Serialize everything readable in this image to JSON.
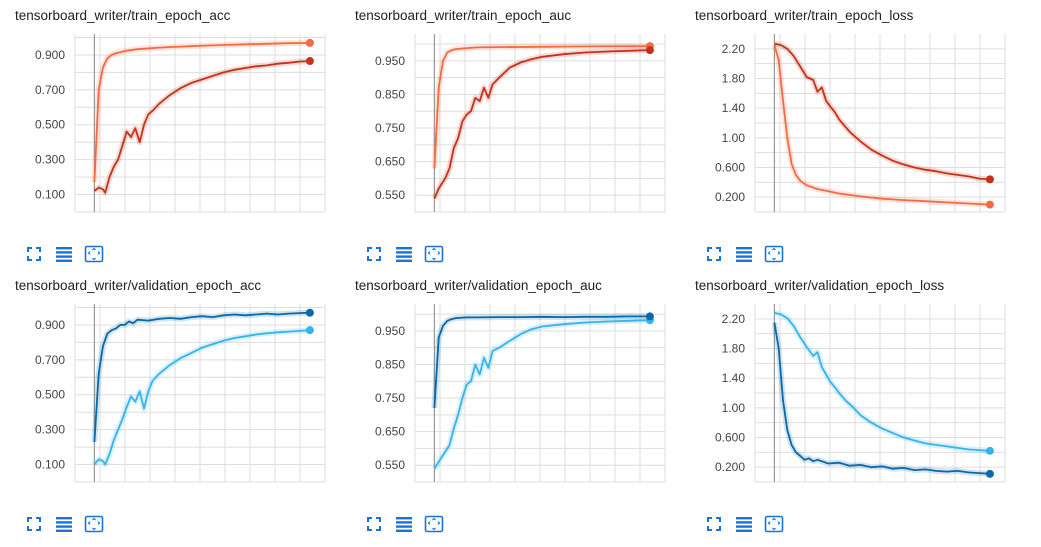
{
  "colors": {
    "train_light": "#f26b43",
    "train_dark": "#c5321a",
    "val_light": "#33b4ea",
    "val_dark": "#0868a9",
    "grid": "#dddddd",
    "axis": "#999999",
    "tool_icon": "#1a73d9"
  },
  "toolbar": {
    "expand_icon": "expand-icon",
    "log_scale_icon": "toggle-log-scale-icon",
    "fit_domain_icon": "fit-domain-icon"
  },
  "chart_data": [
    {
      "type": "line",
      "title": "tensorboard_writer/train_epoch_acc",
      "ytick_labels": [
        "0.900",
        "0.700",
        "0.500",
        "0.300",
        "0.100"
      ],
      "yticks": [
        0.9,
        0.7,
        0.5,
        0.3,
        0.1
      ],
      "ylim": [
        0.0,
        1.02
      ],
      "xlim": [
        -0.09,
        1.07
      ],
      "grid": true,
      "series": [
        {
          "color": "#f26b43",
          "x": [
            0,
            0.02,
            0.04,
            0.06,
            0.08,
            0.1,
            0.15,
            0.2,
            0.3,
            0.4,
            0.5,
            0.6,
            0.7,
            0.8,
            0.9,
            1.0
          ],
          "y": [
            0.17,
            0.7,
            0.83,
            0.88,
            0.9,
            0.91,
            0.925,
            0.933,
            0.942,
            0.948,
            0.953,
            0.957,
            0.961,
            0.964,
            0.967,
            0.969
          ]
        },
        {
          "color": "#c5321a",
          "x": [
            0,
            0.02,
            0.04,
            0.05,
            0.07,
            0.09,
            0.11,
            0.13,
            0.15,
            0.17,
            0.19,
            0.21,
            0.23,
            0.25,
            0.27,
            0.3,
            0.35,
            0.4,
            0.45,
            0.5,
            0.55,
            0.6,
            0.65,
            0.7,
            0.75,
            0.8,
            0.85,
            0.9,
            0.95,
            1.0
          ],
          "y": [
            0.12,
            0.14,
            0.13,
            0.11,
            0.2,
            0.26,
            0.3,
            0.38,
            0.46,
            0.43,
            0.48,
            0.4,
            0.5,
            0.56,
            0.58,
            0.62,
            0.67,
            0.71,
            0.74,
            0.76,
            0.78,
            0.8,
            0.815,
            0.825,
            0.835,
            0.84,
            0.85,
            0.855,
            0.862,
            0.865
          ]
        }
      ]
    },
    {
      "type": "line",
      "title": "tensorboard_writer/train_epoch_auc",
      "ytick_labels": [
        "0.950",
        "0.850",
        "0.750",
        "0.650",
        "0.550"
      ],
      "yticks": [
        0.95,
        0.85,
        0.75,
        0.65,
        0.55
      ],
      "ylim": [
        0.5,
        1.03
      ],
      "xlim": [
        -0.09,
        1.07
      ],
      "grid": true,
      "series": [
        {
          "color": "#f26b43",
          "x": [
            0,
            0.02,
            0.04,
            0.06,
            0.08,
            0.1,
            0.15,
            0.2,
            0.3,
            0.5,
            0.7,
            1.0
          ],
          "y": [
            0.63,
            0.87,
            0.95,
            0.975,
            0.982,
            0.985,
            0.988,
            0.99,
            0.991,
            0.992,
            0.993,
            0.994
          ]
        },
        {
          "color": "#c5321a",
          "x": [
            0,
            0.02,
            0.05,
            0.07,
            0.09,
            0.11,
            0.13,
            0.15,
            0.17,
            0.19,
            0.21,
            0.23,
            0.25,
            0.27,
            0.3,
            0.35,
            0.4,
            0.45,
            0.5,
            0.6,
            0.7,
            0.8,
            0.9,
            1.0
          ],
          "y": [
            0.54,
            0.57,
            0.6,
            0.63,
            0.69,
            0.72,
            0.77,
            0.79,
            0.8,
            0.84,
            0.83,
            0.87,
            0.84,
            0.88,
            0.9,
            0.93,
            0.945,
            0.955,
            0.962,
            0.97,
            0.975,
            0.978,
            0.98,
            0.982
          ]
        }
      ]
    },
    {
      "type": "line",
      "title": "tensorboard_writer/train_epoch_loss",
      "ytick_labels": [
        "2.20",
        "1.80",
        "1.40",
        "1.00",
        "0.600",
        "0.200"
      ],
      "yticks": [
        2.2,
        1.8,
        1.4,
        1.0,
        0.6,
        0.2
      ],
      "ylim": [
        0.0,
        2.4
      ],
      "xlim": [
        -0.09,
        1.07
      ],
      "grid": true,
      "series": [
        {
          "color": "#f26b43",
          "x": [
            0,
            0.02,
            0.04,
            0.06,
            0.08,
            0.1,
            0.12,
            0.15,
            0.2,
            0.25,
            0.3,
            0.4,
            0.5,
            0.6,
            0.7,
            0.8,
            0.9,
            1.0
          ],
          "y": [
            2.25,
            2.05,
            1.5,
            1.0,
            0.65,
            0.5,
            0.42,
            0.36,
            0.31,
            0.28,
            0.25,
            0.21,
            0.18,
            0.16,
            0.145,
            0.13,
            0.115,
            0.1
          ]
        },
        {
          "color": "#c5321a",
          "x": [
            0,
            0.03,
            0.06,
            0.09,
            0.12,
            0.15,
            0.18,
            0.2,
            0.22,
            0.24,
            0.26,
            0.28,
            0.3,
            0.32,
            0.35,
            0.4,
            0.45,
            0.5,
            0.55,
            0.6,
            0.65,
            0.7,
            0.75,
            0.8,
            0.85,
            0.9,
            0.95,
            1.0
          ],
          "y": [
            2.27,
            2.25,
            2.2,
            2.1,
            1.96,
            1.82,
            1.78,
            1.62,
            1.68,
            1.5,
            1.42,
            1.35,
            1.25,
            1.18,
            1.08,
            0.95,
            0.84,
            0.76,
            0.69,
            0.64,
            0.6,
            0.57,
            0.55,
            0.52,
            0.5,
            0.48,
            0.45,
            0.44
          ]
        }
      ]
    },
    {
      "type": "line",
      "title": "tensorboard_writer/validation_epoch_acc",
      "ytick_labels": [
        "0.900",
        "0.700",
        "0.500",
        "0.300",
        "0.100"
      ],
      "yticks": [
        0.9,
        0.7,
        0.5,
        0.3,
        0.1
      ],
      "ylim": [
        0.0,
        1.02
      ],
      "xlim": [
        -0.09,
        1.07
      ],
      "grid": true,
      "series": [
        {
          "color": "#33b4ea",
          "x": [
            0,
            0.02,
            0.04,
            0.05,
            0.07,
            0.09,
            0.11,
            0.13,
            0.15,
            0.17,
            0.19,
            0.21,
            0.23,
            0.25,
            0.27,
            0.3,
            0.35,
            0.4,
            0.45,
            0.5,
            0.55,
            0.6,
            0.65,
            0.7,
            0.75,
            0.8,
            0.85,
            0.9,
            0.95,
            1.0
          ],
          "y": [
            0.1,
            0.13,
            0.12,
            0.1,
            0.16,
            0.24,
            0.3,
            0.36,
            0.43,
            0.49,
            0.46,
            0.52,
            0.42,
            0.52,
            0.58,
            0.62,
            0.67,
            0.71,
            0.74,
            0.77,
            0.79,
            0.81,
            0.825,
            0.835,
            0.845,
            0.852,
            0.858,
            0.862,
            0.866,
            0.87
          ]
        },
        {
          "color": "#0868a9",
          "x": [
            0,
            0.02,
            0.04,
            0.06,
            0.08,
            0.1,
            0.12,
            0.14,
            0.16,
            0.18,
            0.2,
            0.25,
            0.3,
            0.35,
            0.4,
            0.45,
            0.5,
            0.55,
            0.6,
            0.65,
            0.7,
            0.75,
            0.8,
            0.85,
            0.9,
            0.95,
            1.0
          ],
          "y": [
            0.23,
            0.62,
            0.78,
            0.85,
            0.87,
            0.88,
            0.9,
            0.9,
            0.92,
            0.91,
            0.93,
            0.925,
            0.935,
            0.94,
            0.935,
            0.945,
            0.95,
            0.945,
            0.955,
            0.96,
            0.955,
            0.96,
            0.965,
            0.96,
            0.965,
            0.968,
            0.97
          ]
        }
      ]
    },
    {
      "type": "line",
      "title": "tensorboard_writer/validation_epoch_auc",
      "ytick_labels": [
        "0.950",
        "0.850",
        "0.750",
        "0.650",
        "0.550"
      ],
      "yticks": [
        0.95,
        0.85,
        0.75,
        0.65,
        0.55
      ],
      "ylim": [
        0.5,
        1.03
      ],
      "xlim": [
        -0.09,
        1.07
      ],
      "grid": true,
      "series": [
        {
          "color": "#33b4ea",
          "x": [
            0,
            0.02,
            0.05,
            0.07,
            0.09,
            0.11,
            0.13,
            0.15,
            0.17,
            0.19,
            0.21,
            0.23,
            0.25,
            0.27,
            0.3,
            0.35,
            0.4,
            0.45,
            0.5,
            0.6,
            0.7,
            0.8,
            0.9,
            1.0
          ],
          "y": [
            0.54,
            0.56,
            0.59,
            0.61,
            0.66,
            0.7,
            0.75,
            0.79,
            0.8,
            0.85,
            0.82,
            0.87,
            0.84,
            0.89,
            0.9,
            0.92,
            0.94,
            0.955,
            0.963,
            0.97,
            0.975,
            0.978,
            0.98,
            0.982
          ]
        },
        {
          "color": "#0868a9",
          "x": [
            0,
            0.02,
            0.04,
            0.06,
            0.08,
            0.1,
            0.15,
            0.2,
            0.3,
            0.4,
            0.5,
            0.6,
            0.7,
            0.8,
            0.9,
            1.0
          ],
          "y": [
            0.72,
            0.93,
            0.965,
            0.98,
            0.985,
            0.988,
            0.99,
            0.99,
            0.991,
            0.991,
            0.992,
            0.991,
            0.992,
            0.992,
            0.993,
            0.993
          ]
        }
      ]
    },
    {
      "type": "line",
      "title": "tensorboard_writer/validation_epoch_loss",
      "ytick_labels": [
        "2.20",
        "1.80",
        "1.40",
        "1.00",
        "0.600",
        "0.200"
      ],
      "yticks": [
        2.2,
        1.8,
        1.4,
        1.0,
        0.6,
        0.2
      ],
      "ylim": [
        0.0,
        2.4
      ],
      "xlim": [
        -0.09,
        1.07
      ],
      "grid": true,
      "series": [
        {
          "color": "#33b4ea",
          "x": [
            0,
            0.03,
            0.06,
            0.09,
            0.12,
            0.15,
            0.18,
            0.2,
            0.22,
            0.24,
            0.26,
            0.28,
            0.3,
            0.33,
            0.36,
            0.4,
            0.45,
            0.5,
            0.55,
            0.6,
            0.65,
            0.7,
            0.75,
            0.8,
            0.85,
            0.9,
            0.95,
            1.0
          ],
          "y": [
            2.28,
            2.26,
            2.21,
            2.1,
            1.95,
            1.82,
            1.7,
            1.75,
            1.55,
            1.45,
            1.35,
            1.28,
            1.2,
            1.1,
            1.02,
            0.9,
            0.8,
            0.72,
            0.66,
            0.6,
            0.56,
            0.52,
            0.5,
            0.48,
            0.46,
            0.44,
            0.43,
            0.42
          ]
        },
        {
          "color": "#0868a9",
          "x": [
            0,
            0.02,
            0.04,
            0.06,
            0.08,
            0.1,
            0.12,
            0.14,
            0.16,
            0.18,
            0.2,
            0.25,
            0.3,
            0.35,
            0.4,
            0.45,
            0.5,
            0.55,
            0.6,
            0.65,
            0.7,
            0.75,
            0.8,
            0.85,
            0.9,
            0.95,
            1.0
          ],
          "y": [
            2.15,
            1.8,
            1.1,
            0.7,
            0.5,
            0.4,
            0.35,
            0.3,
            0.32,
            0.28,
            0.3,
            0.25,
            0.26,
            0.22,
            0.23,
            0.2,
            0.21,
            0.18,
            0.19,
            0.16,
            0.17,
            0.15,
            0.14,
            0.15,
            0.13,
            0.12,
            0.11
          ]
        }
      ]
    }
  ]
}
